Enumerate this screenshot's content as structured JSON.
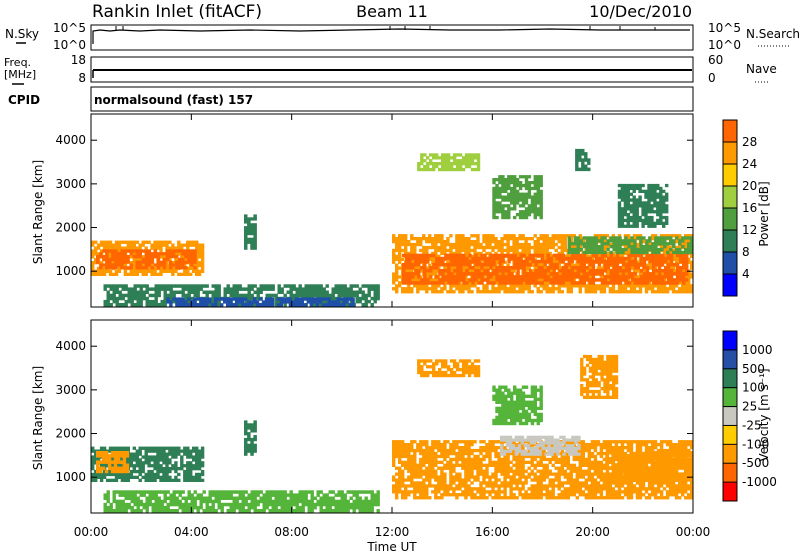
{
  "header": {
    "station": "Rankin Inlet (fitACF)",
    "beam": "Beam 11",
    "date": "10/Dec/2010"
  },
  "panels": {
    "nsky": {
      "left_label": "N.Sky",
      "left_ticks": [
        "10^5",
        "10^0"
      ],
      "right_label": "N.Search",
      "right_ticks": [
        "10^5",
        "10^0"
      ]
    },
    "freq": {
      "left_label_1": "Freq.",
      "left_label_2": "[MHz]",
      "left_ticks": [
        "18",
        "8"
      ],
      "right_label": "Nave",
      "right_ticks": [
        "60",
        "0"
      ]
    },
    "cpid": {
      "label": "CPID",
      "text": "normalsound (fast) 157"
    }
  },
  "colors": {
    "power_scale": [
      "#0000ff",
      "#1f4fa8",
      "#2f7f56",
      "#4f9f3f",
      "#9fcf3f",
      "#ffcc00",
      "#ff9900",
      "#ff6600",
      "#ff2200"
    ],
    "velocity_scale": [
      "#0000ff",
      "#2550a6",
      "#2f7f56",
      "#55b53a",
      "#c8c8c0",
      "#ffcc00",
      "#ff9900",
      "#ff6600",
      "#ff0000"
    ]
  },
  "chart_data": [
    {
      "type": "heatmap",
      "title": "",
      "ylabel": "Slant Range [km]",
      "y_ticks": [
        "1000",
        "2000",
        "3000",
        "4000"
      ],
      "ylim": [
        180,
        4600
      ],
      "colorbar_label": "Power [dB]",
      "colorbar_ticks": [
        "4",
        "8",
        "12",
        "16",
        "20",
        "24",
        "28"
      ],
      "regions": [
        {
          "t0": 0.0,
          "t1": 4.5,
          "r0": 900,
          "r1": 1700,
          "v": 24
        },
        {
          "t0": 0.2,
          "t1": 4.2,
          "r0": 1050,
          "r1": 1500,
          "v": 28
        },
        {
          "t0": 6.1,
          "t1": 6.6,
          "r0": 1500,
          "r1": 2300,
          "v": 10
        },
        {
          "t0": 0.5,
          "t1": 11.5,
          "r0": 200,
          "r1": 700,
          "v": 8
        },
        {
          "t0": 3.0,
          "t1": 10.5,
          "r0": 200,
          "r1": 400,
          "v": 4
        },
        {
          "t0": 12.0,
          "t1": 24.0,
          "r0": 500,
          "r1": 1850,
          "v": 24
        },
        {
          "t0": 12.4,
          "t1": 23.8,
          "r0": 700,
          "r1": 1400,
          "v": 28
        },
        {
          "t0": 19.0,
          "t1": 24.0,
          "r0": 1400,
          "r1": 1800,
          "v": 12
        },
        {
          "t0": 13.0,
          "t1": 15.5,
          "r0": 3300,
          "r1": 3700,
          "v": 16
        },
        {
          "t0": 16.0,
          "t1": 18.0,
          "r0": 2200,
          "r1": 3200,
          "v": 12
        },
        {
          "t0": 21.0,
          "t1": 23.0,
          "r0": 2000,
          "r1": 3000,
          "v": 8
        },
        {
          "t0": 19.3,
          "t1": 19.9,
          "r0": 3300,
          "r1": 3800,
          "v": 8
        }
      ]
    },
    {
      "type": "heatmap",
      "title": "",
      "ylabel": "Slant Range [km]",
      "y_ticks": [
        "1000",
        "2000",
        "3000",
        "4000"
      ],
      "ylim": [
        180,
        4600
      ],
      "colorbar_label": "Velocity [m s⁻¹]",
      "colorbar_ticks": [
        "1000",
        "500",
        "100",
        "25",
        "-25",
        "-100",
        "-500",
        "-1000"
      ],
      "regions": [
        {
          "t0": 0.0,
          "t1": 4.5,
          "r0": 900,
          "r1": 1700,
          "v": 150
        },
        {
          "t0": 0.2,
          "t1": 1.5,
          "r0": 1100,
          "r1": 1600,
          "v": -200
        },
        {
          "t0": 6.1,
          "t1": 6.6,
          "r0": 1500,
          "r1": 2300,
          "v": 150
        },
        {
          "t0": 0.5,
          "t1": 11.5,
          "r0": 200,
          "r1": 700,
          "v": 50
        },
        {
          "t0": 12.0,
          "t1": 24.0,
          "r0": 500,
          "r1": 1850,
          "v": -200
        },
        {
          "t0": 16.3,
          "t1": 19.5,
          "r0": 1500,
          "r1": 1950,
          "v": 0
        },
        {
          "t0": 20.5,
          "t1": 24.0,
          "r0": 900,
          "r1": 1600,
          "v": -300
        },
        {
          "t0": 13.0,
          "t1": 15.5,
          "r0": 3300,
          "r1": 3700,
          "v": -150
        },
        {
          "t0": 19.5,
          "t1": 21.0,
          "r0": 2800,
          "r1": 3800,
          "v": -200
        },
        {
          "t0": 16.0,
          "t1": 18.0,
          "r0": 2200,
          "r1": 3100,
          "v": 50
        }
      ]
    }
  ],
  "x_axis": {
    "label": "Time UT",
    "ticks": [
      "00:00",
      "04:00",
      "08:00",
      "12:00",
      "16:00",
      "20:00",
      "00:00"
    ],
    "range_hours": [
      0,
      24
    ]
  }
}
